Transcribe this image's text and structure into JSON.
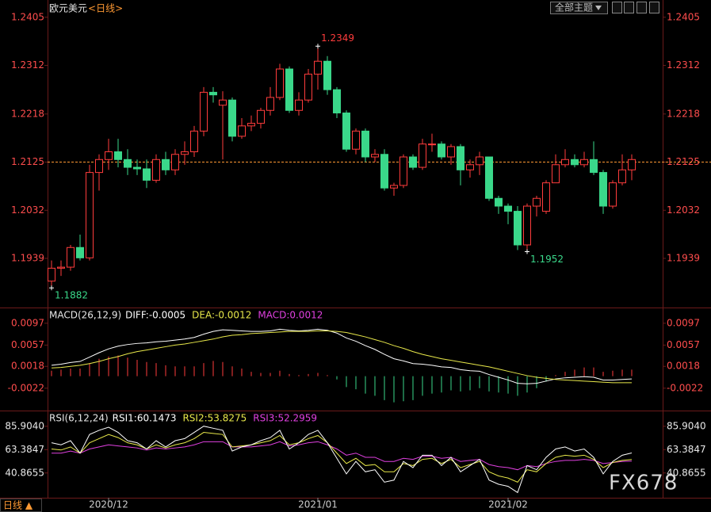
{
  "ui": {
    "theme_button": "全部主题",
    "period_button": "日线 ▲",
    "watermark": "FX678"
  },
  "chart_data": [
    {
      "type": "candlestick",
      "title": "欧元美元",
      "subtitle": "<日线>",
      "categories": [
        null,
        null,
        null,
        null,
        null,
        null,
        "2020/12",
        null,
        null,
        null,
        null,
        null,
        null,
        null,
        null,
        null,
        null,
        null,
        null,
        null,
        null,
        null,
        null,
        null,
        null,
        null,
        null,
        null,
        "2021/01",
        null,
        null,
        null,
        null,
        null,
        null,
        null,
        null,
        null,
        null,
        null,
        null,
        null,
        null,
        null,
        null,
        null,
        null,
        null,
        "2021/02",
        null,
        null,
        null,
        null,
        null,
        null,
        null,
        null,
        null,
        null,
        null,
        null,
        null
      ],
      "open": [
        1.1895,
        1.192,
        1.1922,
        1.196,
        1.194,
        1.2105,
        1.213,
        1.2145,
        1.213,
        1.2115,
        1.2112,
        1.209,
        1.213,
        1.211,
        1.214,
        1.2145,
        1.2185,
        1.226,
        1.2235,
        1.2245,
        1.2175,
        1.2195,
        1.22,
        1.2225,
        1.225,
        1.2305,
        1.2225,
        1.2245,
        1.2295,
        1.232,
        1.2265,
        1.222,
        1.215,
        1.2185,
        1.2135,
        1.214,
        1.2075,
        1.208,
        1.2135,
        1.2115,
        1.216,
        1.216,
        1.2135,
        1.2155,
        1.211,
        1.212,
        1.2135,
        1.2055,
        1.204,
        1.203,
        1.1965,
        1.204,
        1.203,
        1.2085,
        1.212,
        1.213,
        1.212,
        1.213,
        1.2105,
        1.204,
        1.2085,
        1.211
      ],
      "high": [
        1.1935,
        1.1935,
        1.1965,
        1.1985,
        1.212,
        1.214,
        1.217,
        1.217,
        1.215,
        1.213,
        1.213,
        1.214,
        1.2145,
        1.215,
        1.2165,
        1.2195,
        1.227,
        1.227,
        1.2262,
        1.225,
        1.221,
        1.2215,
        1.223,
        1.227,
        1.2315,
        1.231,
        1.226,
        1.2305,
        1.2349,
        1.233,
        1.227,
        1.2225,
        1.219,
        1.219,
        1.215,
        1.215,
        1.2085,
        1.214,
        1.214,
        1.217,
        1.218,
        1.2165,
        1.216,
        1.216,
        1.213,
        1.2145,
        1.2135,
        1.206,
        1.2045,
        1.204,
        1.2045,
        1.206,
        1.209,
        1.214,
        1.215,
        1.214,
        1.2145,
        1.2165,
        1.211,
        1.209,
        1.214,
        1.214
      ],
      "low": [
        1.1882,
        1.1905,
        1.1915,
        1.1935,
        1.1935,
        1.207,
        1.211,
        1.2115,
        1.21,
        1.21,
        1.2075,
        1.2085,
        1.21,
        1.21,
        1.212,
        1.2135,
        1.2175,
        1.224,
        1.213,
        1.2165,
        1.217,
        1.2185,
        1.219,
        1.2215,
        1.2245,
        1.222,
        1.2215,
        1.224,
        1.2265,
        1.2255,
        1.221,
        1.2145,
        1.214,
        1.2125,
        1.2125,
        1.207,
        1.206,
        1.2075,
        1.211,
        1.211,
        1.2145,
        1.213,
        1.212,
        1.208,
        1.2095,
        1.21,
        1.205,
        1.2025,
        1.2005,
        1.1955,
        1.1952,
        1.202,
        1.2025,
        1.2085,
        1.2115,
        1.2115,
        1.2115,
        1.21,
        1.2025,
        1.2035,
        1.208,
        1.209
      ],
      "close": [
        1.192,
        1.1922,
        1.196,
        1.194,
        1.2105,
        1.213,
        1.2145,
        1.213,
        1.2115,
        1.2112,
        1.209,
        1.213,
        1.211,
        1.214,
        1.2145,
        1.2185,
        1.226,
        1.2255,
        1.2245,
        1.2175,
        1.2195,
        1.22,
        1.2225,
        1.225,
        1.2305,
        1.2225,
        1.2245,
        1.2295,
        1.232,
        1.2265,
        1.222,
        1.215,
        1.2185,
        1.2135,
        1.214,
        1.2075,
        1.208,
        1.2135,
        1.2115,
        1.216,
        1.216,
        1.2135,
        1.2155,
        1.211,
        1.212,
        1.2135,
        1.2055,
        1.204,
        1.203,
        1.1965,
        1.204,
        1.2055,
        1.2085,
        1.212,
        1.213,
        1.212,
        1.213,
        1.2105,
        1.204,
        1.2085,
        1.211,
        1.213
      ],
      "up_color": "#ff3c3c",
      "down_color": "#3ad88a",
      "ylim": [
        1.1844,
        1.2423
      ],
      "yticks": [
        1.2405,
        1.2312,
        1.2218,
        1.2125,
        1.2032,
        1.1939
      ],
      "tick_color": "#ff4d4d",
      "price_line": 1.2125,
      "price_line_color": "#ff9933",
      "annotations": [
        1.2349,
        1.1882,
        1.1952
      ]
    },
    {
      "type": "macd",
      "title": "MACD(26,12,9)",
      "series": [
        {
          "name": "DIFF:-0.0005",
          "color": "#ffffff",
          "kind": "line",
          "values": [
            0.002,
            0.0022,
            0.0025,
            0.0027,
            0.0035,
            0.0043,
            0.005,
            0.0055,
            0.0058,
            0.006,
            0.0061,
            0.0063,
            0.0064,
            0.0066,
            0.0068,
            0.0071,
            0.0077,
            0.0082,
            0.0085,
            0.0084,
            0.0083,
            0.0082,
            0.0082,
            0.0083,
            0.0086,
            0.0084,
            0.0083,
            0.0084,
            0.0086,
            0.0084,
            0.0079,
            0.007,
            0.0064,
            0.0056,
            0.0049,
            0.004,
            0.0032,
            0.0028,
            0.0023,
            0.0022,
            0.002,
            0.0017,
            0.0016,
            0.0012,
            0.001,
            0.0009,
            0.0003,
            -0.0002,
            -0.0007,
            -0.0013,
            -0.0014,
            -0.0013,
            -0.0009,
            -0.0005,
            -0.0003,
            -0.0002,
            -0.0001,
            -0.0002,
            -0.0007,
            -0.0007,
            -0.0006,
            -0.0005
          ]
        },
        {
          "name": "DEA:-0.0012",
          "color": "#e8e84a",
          "kind": "line",
          "values": [
            0.0015,
            0.0016,
            0.0018,
            0.002,
            0.0023,
            0.0027,
            0.0032,
            0.0036,
            0.0041,
            0.0045,
            0.0048,
            0.0051,
            0.0054,
            0.0057,
            0.0059,
            0.0062,
            0.0065,
            0.0068,
            0.0072,
            0.0075,
            0.0076,
            0.0078,
            0.0079,
            0.008,
            0.0081,
            0.0082,
            0.0082,
            0.0082,
            0.0083,
            0.0083,
            0.0082,
            0.008,
            0.0076,
            0.0072,
            0.0067,
            0.0062,
            0.0056,
            0.0051,
            0.0045,
            0.004,
            0.0036,
            0.0032,
            0.0029,
            0.0026,
            0.0023,
            0.002,
            0.0017,
            0.0013,
            0.0009,
            0.0005,
            0.0001,
            -0.0002,
            -0.0004,
            -0.0006,
            -0.0007,
            -0.0008,
            -0.0009,
            -0.001,
            -0.0011,
            -0.0012,
            -0.0012,
            -0.0012
          ]
        },
        {
          "name": "MACD:0.0012",
          "color": "#e040e0",
          "kind": "bar",
          "up_color": "#ff3c3c",
          "down_color": "#3ad88a",
          "values": [
            0.001,
            0.0012,
            0.0014,
            0.0014,
            0.0024,
            0.0032,
            0.0036,
            0.0038,
            0.0034,
            0.003,
            0.0026,
            0.0024,
            0.002,
            0.0018,
            0.0018,
            0.0018,
            0.0024,
            0.0028,
            0.0026,
            0.0018,
            0.0014,
            0.0008,
            0.0006,
            0.0006,
            0.001,
            0.0004,
            0.0002,
            0.0004,
            0.0006,
            0.0002,
            -0.0006,
            -0.002,
            -0.0024,
            -0.0032,
            -0.0036,
            -0.0044,
            -0.0048,
            -0.0046,
            -0.0044,
            -0.0036,
            -0.0032,
            -0.003,
            -0.0026,
            -0.0028,
            -0.0026,
            -0.0022,
            -0.0028,
            -0.003,
            -0.0032,
            -0.0036,
            -0.003,
            -0.0022,
            -0.001,
            0.0002,
            0.0008,
            0.0012,
            0.0016,
            0.0016,
            0.0008,
            0.001,
            0.0012,
            0.0012
          ]
        }
      ],
      "ylim": [
        -0.0063,
        0.012
      ],
      "yticks": [
        0.0097,
        0.0057,
        0.0018,
        -0.0022
      ],
      "tick_color": "#ff4d4d"
    },
    {
      "type": "line",
      "title": "RSI(6,12,24)",
      "series": [
        {
          "name": "RSI1:60.1473",
          "color": "#ffffff",
          "values": [
            70,
            68,
            72,
            60,
            78,
            82,
            85,
            80,
            72,
            70,
            64,
            72,
            66,
            72,
            74,
            80,
            86,
            84,
            82,
            62,
            66,
            68,
            72,
            75,
            82,
            64,
            70,
            78,
            82,
            70,
            55,
            40,
            52,
            42,
            44,
            32,
            34,
            52,
            46,
            58,
            58,
            48,
            56,
            42,
            48,
            54,
            34,
            30,
            28,
            22,
            48,
            44,
            56,
            64,
            66,
            62,
            64,
            56,
            40,
            52,
            58,
            60.1473
          ]
        },
        {
          "name": "RSI2:53.8275",
          "color": "#e8e84a",
          "values": [
            64,
            63,
            66,
            60,
            70,
            74,
            78,
            75,
            70,
            68,
            64,
            68,
            65,
            68,
            70,
            74,
            80,
            79,
            78,
            66,
            67,
            68,
            70,
            72,
            77,
            68,
            70,
            74,
            77,
            70,
            60,
            50,
            55,
            48,
            49,
            42,
            42,
            50,
            48,
            54,
            55,
            50,
            54,
            46,
            49,
            52,
            42,
            38,
            36,
            32,
            44,
            42,
            50,
            56,
            58,
            57,
            58,
            54,
            46,
            51,
            53,
            53.8275
          ]
        },
        {
          "name": "RSI3:52.2959",
          "color": "#e040e0",
          "values": [
            60,
            60,
            62,
            60,
            64,
            66,
            68,
            67,
            66,
            65,
            63,
            65,
            64,
            65,
            66,
            68,
            71,
            71,
            71,
            66,
            66,
            66,
            67,
            68,
            71,
            67,
            68,
            70,
            71,
            68,
            64,
            58,
            60,
            56,
            56,
            52,
            52,
            55,
            54,
            57,
            57,
            55,
            56,
            52,
            53,
            54,
            49,
            47,
            46,
            44,
            48,
            47,
            50,
            52,
            53,
            53,
            54,
            53,
            50,
            51,
            52,
            52.2959
          ]
        }
      ],
      "ylim": [
        17,
        98
      ],
      "yticks": [
        {
          "value": 85.904,
          "label": "85.9040"
        },
        63.3847,
        40.8655
      ],
      "tick_color": "#e8e8e8"
    }
  ]
}
